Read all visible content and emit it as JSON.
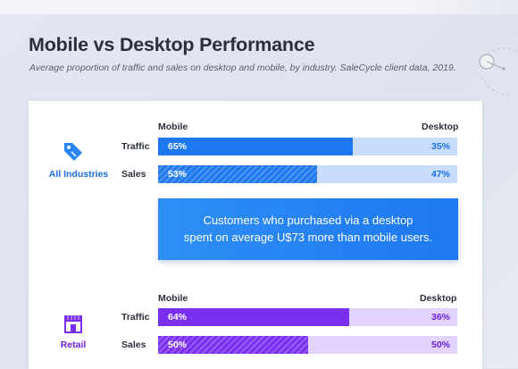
{
  "title": "Mobile vs Desktop Performance",
  "subtitle": "Average proportion of traffic and sales on desktop and mobile, by industry. SaleCycle client data, 2019.",
  "colors": {
    "all_industries_mobile": "#1e78f0",
    "all_industries_desktop": "#c8ddfc",
    "all_industries_label": "#1e6fe0",
    "retail_mobile": "#7a2ff0",
    "retail_desktop": "#e3d4fd",
    "retail_label": "#6a1fe0"
  },
  "icons": [
    "price-tag-icon",
    "storefront-icon"
  ],
  "callout": {
    "line1": "Customers who purchased via a desktop",
    "line2": "spent on average U$73 more than mobile users."
  },
  "chart_data": [
    {
      "type": "bar",
      "orientation": "horizontal-stacked-100",
      "industry": "All Industries",
      "column_labels": {
        "mobile": "Mobile",
        "desktop": "Desktop"
      },
      "categories": [
        "Traffic",
        "Sales"
      ],
      "series": [
        {
          "name": "Mobile",
          "values": [
            65,
            53
          ],
          "labels": [
            "65%",
            "53%"
          ]
        },
        {
          "name": "Desktop",
          "values": [
            35,
            47
          ],
          "labels": [
            "35%",
            "47%"
          ]
        }
      ],
      "hatched_categories": [
        "Sales"
      ]
    },
    {
      "type": "bar",
      "orientation": "horizontal-stacked-100",
      "industry": "Retail",
      "column_labels": {
        "mobile": "Mobile",
        "desktop": "Desktop"
      },
      "categories": [
        "Traffic",
        "Sales"
      ],
      "series": [
        {
          "name": "Mobile",
          "values": [
            64,
            50
          ],
          "labels": [
            "64%",
            "50%"
          ]
        },
        {
          "name": "Desktop",
          "values": [
            36,
            50
          ],
          "labels": [
            "36%",
            "50%"
          ]
        }
      ],
      "hatched_categories": [
        "Sales"
      ]
    }
  ]
}
